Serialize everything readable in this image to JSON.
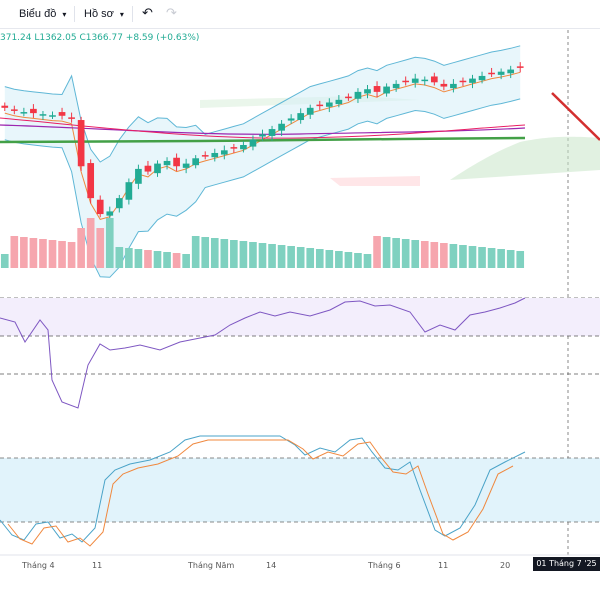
{
  "toolbar": {
    "chart_label": "Biểu đồ",
    "profile_label": "Hồ sơ",
    "undo_icon": "undo-icon",
    "redo_icon": "redo-icon"
  },
  "ohlc_text": "371.24  L1362.05  C1366.77  +8.59 (+0.63%)",
  "colors": {
    "up": "#22ab94",
    "down": "#f23645",
    "volume_up": "#7fd1c0",
    "volume_down": "#f6a6ae",
    "bollinger": "#5fb7d6",
    "rsi": "#7e57c2",
    "stoch_k": "#4aa3c8",
    "stoch_d": "#f0883e",
    "ma_green": "#43a047",
    "ma_purple": "#9c27b0"
  },
  "x_axis": {
    "labels": [
      "Tháng 4",
      "11",
      "Tháng Năm",
      "14",
      "Tháng 6",
      "11",
      "20"
    ],
    "current_date": "01 Tháng 7 '25"
  },
  "chart_data": {
    "type": "candlestick",
    "title": "",
    "last": {
      "low": 1362.05,
      "close": 1366.77,
      "change": 8.59,
      "change_pct": 0.63
    },
    "closes_index": [
      1290,
      1285,
      1282,
      1280,
      1278,
      1276,
      1275,
      1270,
      1180,
      1120,
      1090,
      1095,
      1120,
      1150,
      1175,
      1170,
      1185,
      1190,
      1180,
      1185,
      1195,
      1200,
      1205,
      1210,
      1215,
      1220,
      1230,
      1240,
      1250,
      1260,
      1270,
      1280,
      1290,
      1295,
      1300,
      1305,
      1310,
      1320,
      1325,
      1320,
      1330,
      1335,
      1340,
      1345,
      1343,
      1338,
      1330,
      1335,
      1340,
      1345,
      1350,
      1355,
      1358,
      1362,
      1366.77
    ],
    "rsi_levels": [
      70,
      50,
      30
    ],
    "stoch_levels": [
      80,
      20
    ]
  }
}
